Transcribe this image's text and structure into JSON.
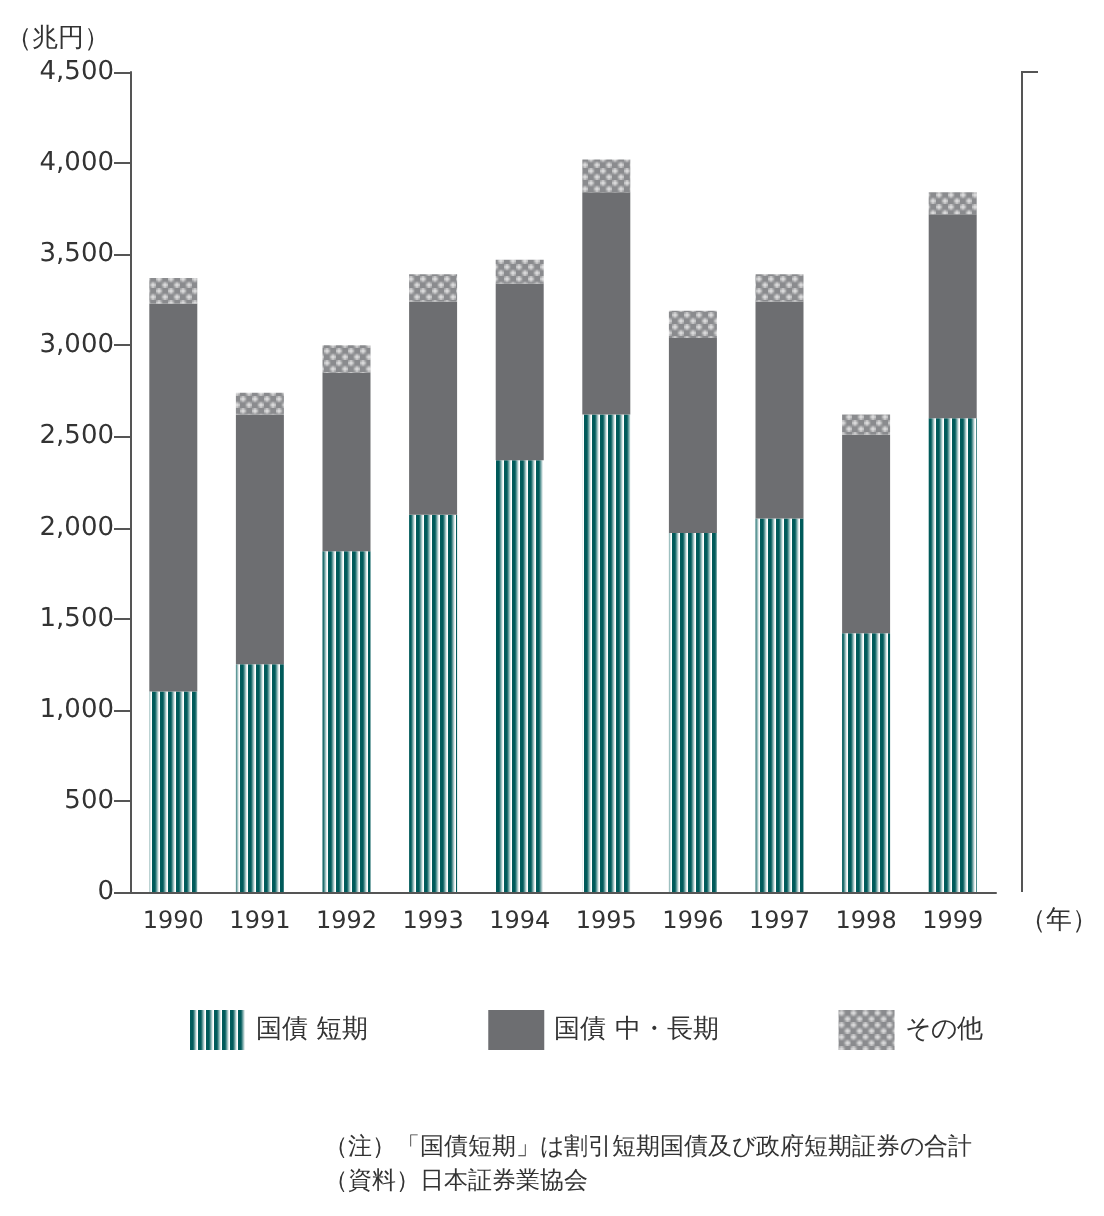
{
  "chart_data": {
    "type": "bar",
    "stacked": true,
    "xlabel": "（年）",
    "ylabel": "（兆円）",
    "categories": [
      "1990",
      "1991",
      "1992",
      "1993",
      "1994",
      "1995",
      "1996",
      "1997",
      "1998",
      "1999"
    ],
    "series": [
      {
        "name": "国債 短期",
        "color": "#005a5a",
        "values": [
          1100,
          1250,
          1870,
          2070,
          2370,
          2620,
          1970,
          2050,
          1420,
          2600
        ]
      },
      {
        "name": "国債 中・長期",
        "color": "#6d6e71",
        "values": [
          2130,
          1370,
          980,
          1170,
          970,
          1220,
          1070,
          1190,
          1090,
          1120
        ]
      },
      {
        "name": "その他",
        "color": "#8a8b8e",
        "values": [
          140,
          120,
          150,
          150,
          130,
          180,
          150,
          150,
          110,
          120
        ]
      }
    ],
    "ylim": [
      0,
      4500
    ],
    "yticks": [
      0,
      500,
      {
        "value": 1000,
        "label": "1,000"
      },
      {
        "value": 1500,
        "label": "1,500"
      },
      {
        "value": 2000,
        "label": "2,000"
      },
      {
        "value": 2500,
        "label": "2,500"
      },
      {
        "value": 3000,
        "label": "3,000"
      },
      {
        "value": 3500,
        "label": "3,500"
      },
      {
        "value": 4000,
        "label": "4,000"
      },
      {
        "value": 4500,
        "label": "4,500"
      }
    ],
    "grid": false,
    "legend": "bottom",
    "annotations": [
      "（注）「国債短期」は割引短期国債及び政府短期証券の合計",
      "（資料）日本証券業協会"
    ]
  }
}
